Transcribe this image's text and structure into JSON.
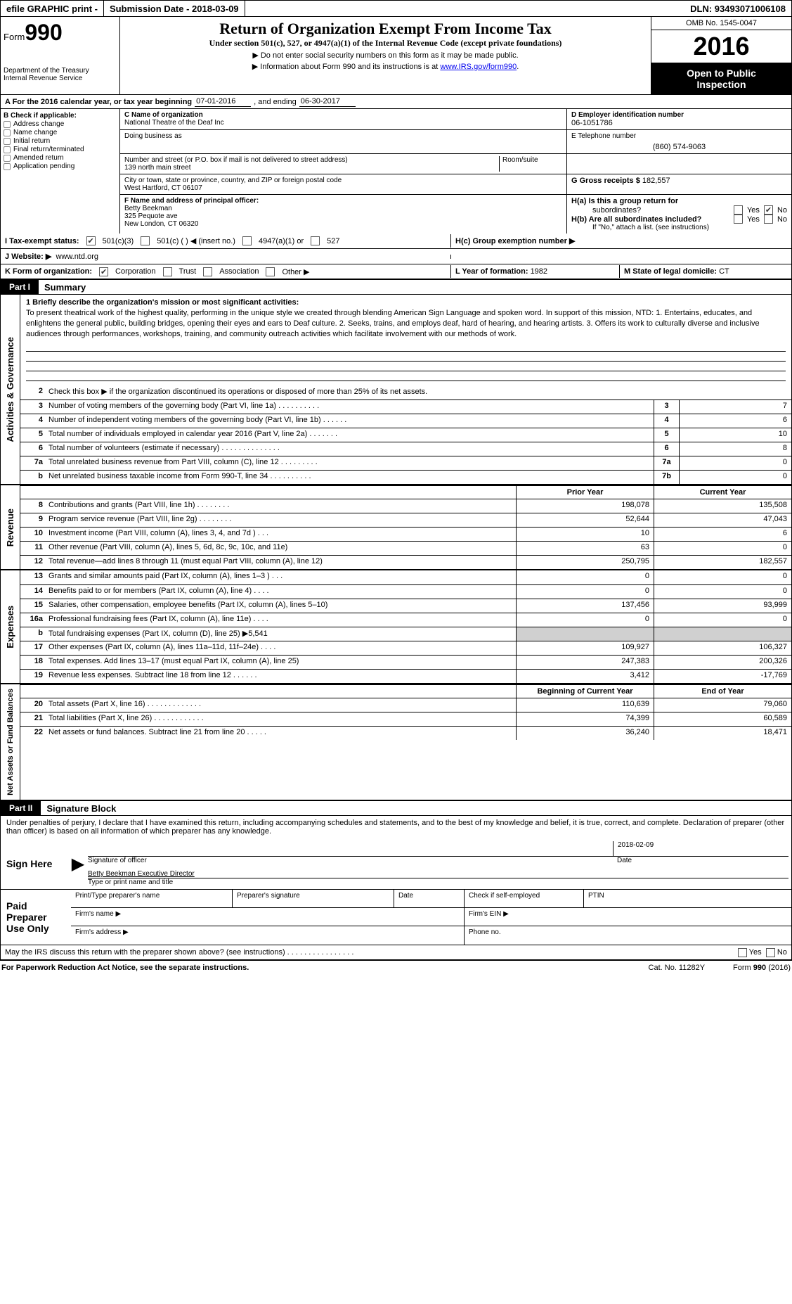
{
  "top": {
    "efile": "efile GRAPHIC print - ",
    "submission": "Submission Date - 2018-03-09",
    "dln": "DLN: 93493071006108"
  },
  "header": {
    "form_word": "Form",
    "form_num": "990",
    "dept1": "Department of the Treasury",
    "dept2": "Internal Revenue Service",
    "title": "Return of Organization Exempt From Income Tax",
    "subtitle": "Under section 501(c), 527, or 4947(a)(1) of the Internal Revenue Code (except private foundations)",
    "note1": "▶ Do not enter social security numbers on this form as it may be made public.",
    "note2a": "▶ Information about Form 990 and its instructions is at ",
    "note2b": "www.IRS.gov/form990",
    "omb": "OMB No. 1545-0047",
    "year": "2016",
    "open1": "Open to Public",
    "open2": "Inspection"
  },
  "rowA": {
    "prefix": "A   For the 2016 calendar year, or tax year beginning ",
    "begin": "07-01-2016",
    "mid": "  , and ending ",
    "end": "06-30-2017"
  },
  "boxB": {
    "title": "B Check if applicable:",
    "items": [
      "Address change",
      "Name change",
      "Initial return",
      "Final return/terminated",
      "Amended return",
      "Application pending"
    ]
  },
  "boxC": {
    "c_label": "C Name of organization",
    "org": "National Theatre of the Deaf Inc",
    "dba_label": "Doing business as",
    "addr_label": "Number and street (or P.O. box if mail is not delivered to street address)",
    "room_label": "Room/suite",
    "street": "139 north main street",
    "city_label": "City or town, state or province, country, and ZIP or foreign postal code",
    "city": "West Hartford, CT  06107",
    "f_label": "F Name and address of principal officer:",
    "officer_name": "Betty Beekman",
    "officer_addr1": "325 Pequote ave",
    "officer_addr2": "New London, CT  06320"
  },
  "boxD": {
    "d_label": "D Employer identification number",
    "ein": "06-1051786",
    "e_label": "E Telephone number",
    "phone": "(860) 574-9063",
    "g_label": "G Gross receipts $ ",
    "gross": "182,557",
    "ha_label": "H(a)  Is this a group return for",
    "ha_sub": "subordinates?",
    "hb_label": "H(b)  Are all subordinates included?",
    "hb_note": "If \"No,\" attach a list. (see instructions)",
    "hc_label": "H(c)  Group exemption number ▶",
    "yes": "Yes",
    "no": "No"
  },
  "rowI": {
    "label": "I  Tax-exempt status:",
    "opts": [
      "501(c)(3)",
      "501(c) (   ) ◀ (insert no.)",
      "4947(a)(1) or",
      "527"
    ]
  },
  "rowJ": {
    "label": "J  Website: ▶",
    "url": "www.ntd.org"
  },
  "rowK": {
    "label": "K Form of organization:",
    "opts": [
      "Corporation",
      "Trust",
      "Association",
      "Other ▶"
    ],
    "l": "L Year of formation: ",
    "l_val": "1982",
    "m": "M State of legal domicile: ",
    "m_val": "CT"
  },
  "partI": {
    "hdr": "Part I",
    "title": "Summary",
    "mission_lead": "1   Briefly describe the organization's mission or most significant activities:",
    "mission": "To present theatrical work of the highest quality, performing in the unique style we created through blending American Sign Language and spoken word. In support of this mission, NTD: 1. Entertains, educates, and enlightens the general public, building bridges, opening their eyes and ears to Deaf culture. 2. Seeks, trains, and employs deaf, hard of hearing, and hearing artists. 3. Offers its work to culturally diverse and inclusive audiences through performances, workshops, training, and community outreach activities which facilitate involvement with our methods of work.",
    "line2": "Check this box ▶    if the organization discontinued its operations or disposed of more than 25% of its net assets.",
    "gov": [
      {
        "n": "3",
        "t": "Number of voting members of the governing body (Part VI, line 1a)   .   .   .   .   .   .   .   .   .   .",
        "b": "3",
        "v": "7"
      },
      {
        "n": "4",
        "t": "Number of independent voting members of the governing body (Part VI, line 1b)   .   .   .   .   .   .",
        "b": "4",
        "v": "6"
      },
      {
        "n": "5",
        "t": "Total number of individuals employed in calendar year 2016 (Part V, line 2a)   .   .   .   .   .   .   .",
        "b": "5",
        "v": "10"
      },
      {
        "n": "6",
        "t": "Total number of volunteers (estimate if necessary)   .   .   .   .   .   .   .   .   .   .   .   .   .   .",
        "b": "6",
        "v": "8"
      },
      {
        "n": "7a",
        "t": "Total unrelated business revenue from Part VIII, column (C), line 12   .   .   .   .   .   .   .   .   .",
        "b": "7a",
        "v": "0"
      },
      {
        "n": "b",
        "t": "Net unrelated business taxable income from Form 990-T, line 34    .   .   .   .   .   .   .   .   .   .",
        "b": "7b",
        "v": "0"
      }
    ],
    "col_prior": "Prior Year",
    "col_curr": "Current Year",
    "revenue": [
      {
        "n": "8",
        "t": "Contributions and grants (Part VIII, line 1h)   .   .   .   .   .   .   .   .",
        "p": "198,078",
        "c": "135,508"
      },
      {
        "n": "9",
        "t": "Program service revenue (Part VIII, line 2g)    .   .   .   .   .   .   .   .",
        "p": "52,644",
        "c": "47,043"
      },
      {
        "n": "10",
        "t": "Investment income (Part VIII, column (A), lines 3, 4, and 7d )   .   .   .",
        "p": "10",
        "c": "6"
      },
      {
        "n": "11",
        "t": "Other revenue (Part VIII, column (A), lines 5, 6d, 8c, 9c, 10c, and 11e)",
        "p": "63",
        "c": "0"
      },
      {
        "n": "12",
        "t": "Total revenue—add lines 8 through 11 (must equal Part VIII, column (A), line 12)",
        "p": "250,795",
        "c": "182,557"
      }
    ],
    "expenses": [
      {
        "n": "13",
        "t": "Grants and similar amounts paid (Part IX, column (A), lines 1–3 )   .   .   .",
        "p": "0",
        "c": "0"
      },
      {
        "n": "14",
        "t": "Benefits paid to or for members (Part IX, column (A), line 4)   .   .   .   .",
        "p": "0",
        "c": "0"
      },
      {
        "n": "15",
        "t": "Salaries, other compensation, employee benefits (Part IX, column (A), lines 5–10)",
        "p": "137,456",
        "c": "93,999"
      },
      {
        "n": "16a",
        "t": "Professional fundraising fees (Part IX, column (A), line 11e)   .   .   .   .",
        "p": "0",
        "c": "0"
      },
      {
        "n": "b",
        "t": "Total fundraising expenses (Part IX, column (D), line 25) ▶5,541",
        "p": "shade",
        "c": "shade"
      },
      {
        "n": "17",
        "t": "Other expenses (Part IX, column (A), lines 11a–11d, 11f–24e)   .   .   .   .",
        "p": "109,927",
        "c": "106,327"
      },
      {
        "n": "18",
        "t": "Total expenses. Add lines 13–17 (must equal Part IX, column (A), line 25)",
        "p": "247,383",
        "c": "200,326"
      },
      {
        "n": "19",
        "t": "Revenue less expenses. Subtract line 18 from line 12   .   .   .   .   .   .",
        "p": "3,412",
        "c": "-17,769"
      }
    ],
    "net_h1": "Beginning of Current Year",
    "net_h2": "End of Year",
    "net": [
      {
        "n": "20",
        "t": "Total assets (Part X, line 16)   .   .   .   .   .   .   .   .   .   .   .   .   .",
        "p": "110,639",
        "c": "79,060"
      },
      {
        "n": "21",
        "t": "Total liabilities (Part X, line 26)   .   .   .   .   .   .   .   .   .   .   .   .",
        "p": "74,399",
        "c": "60,589"
      },
      {
        "n": "22",
        "t": "Net assets or fund balances. Subtract line 21 from line 20   .   .   .   .   .",
        "p": "36,240",
        "c": "18,471"
      }
    ],
    "side_gov": "Activities & Governance",
    "side_rev": "Revenue",
    "side_exp": "Expenses",
    "side_net": "Net Assets or Fund Balances"
  },
  "partII": {
    "hdr": "Part II",
    "title": "Signature Block",
    "perjury": "Under penalties of perjury, I declare that I have examined this return, including accompanying schedules and statements, and to the best of my knowledge and belief, it is true, correct, and complete. Declaration of preparer (other than officer) is based on all information of which preparer has any knowledge.",
    "sign_here": "Sign Here",
    "sig_officer": "Signature of officer",
    "sig_date": "Date",
    "sig_date_val": "2018-02-09",
    "sig_name": "Betty Beekman Executive Director",
    "sig_name_lbl": "Type or print name and title",
    "paid": "Paid Preparer Use Only",
    "prep_name": "Print/Type preparer's name",
    "prep_sig": "Preparer's signature",
    "prep_date": "Date",
    "prep_self": "Check        if self-employed",
    "prep_ptin": "PTIN",
    "firm_name": "Firm's name    ▶",
    "firm_ein": "Firm's EIN ▶",
    "firm_addr": "Firm's address ▶",
    "firm_phone": "Phone no."
  },
  "discuss": {
    "q": "May the IRS discuss this return with the preparer shown above? (see instructions)    .   .   .   .   .   .   .   .   .   .   .   .   .   .   .   .",
    "yes": "Yes",
    "no": "No"
  },
  "footer": {
    "l": "For Paperwork Reduction Act Notice, see the separate instructions.",
    "m": "Cat. No. 11282Y",
    "r": "Form 990 (2016)"
  }
}
